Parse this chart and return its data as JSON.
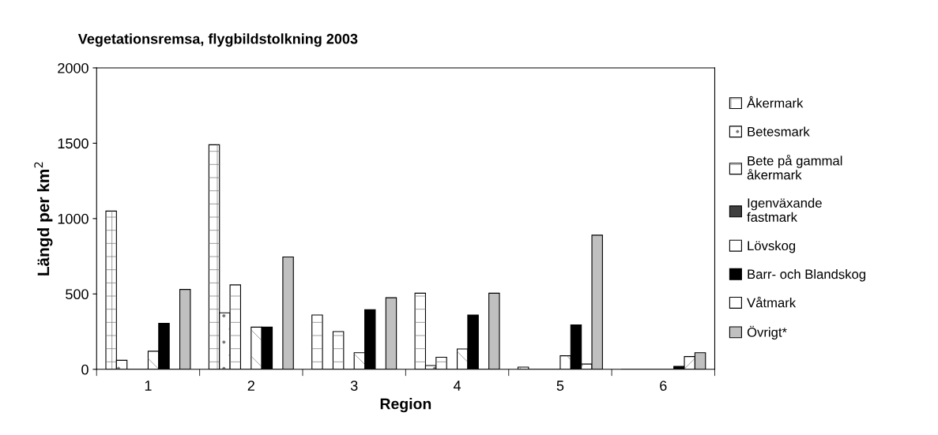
{
  "chart_data": {
    "type": "bar",
    "title": "Vegetationsremsa, flygbildstolkning 2003",
    "xlabel": "Region",
    "ylabel": "Längd per km$^{2}$",
    "categories": [
      "1",
      "2",
      "3",
      "4",
      "5",
      "6"
    ],
    "series": [
      {
        "name": "Åkermark",
        "color": "#ffffff",
        "values": [
          1050,
          1490,
          360,
          505,
          15,
          0
        ]
      },
      {
        "name": "Betesmark",
        "color": "#ffffff",
        "values": [
          60,
          375,
          0,
          25,
          0,
          0
        ]
      },
      {
        "name": "Bete på gammal åkermark",
        "color": "#ffffff",
        "values": [
          0,
          560,
          250,
          80,
          0,
          0
        ]
      },
      {
        "name": "Igenväxande fastmark",
        "color": "#404040",
        "values": [
          0,
          0,
          0,
          0,
          0,
          0
        ]
      },
      {
        "name": "Lövskog",
        "color": "#ffffff",
        "values": [
          120,
          280,
          110,
          135,
          90,
          0
        ]
      },
      {
        "name": "Barr- och Blandskog",
        "color": "#000000",
        "values": [
          305,
          280,
          395,
          360,
          295,
          20
        ]
      },
      {
        "name": "Våtmark",
        "color": "#ffffff",
        "values": [
          0,
          0,
          0,
          0,
          35,
          85
        ]
      },
      {
        "name": "Övrigt*",
        "color": "#c0c0c0",
        "values": [
          530,
          745,
          475,
          505,
          890,
          110
        ]
      }
    ],
    "ylim": [
      0,
      2000
    ],
    "yticks": [
      0,
      500,
      1000,
      1500,
      2000
    ],
    "grid": false,
    "legend": "right"
  }
}
